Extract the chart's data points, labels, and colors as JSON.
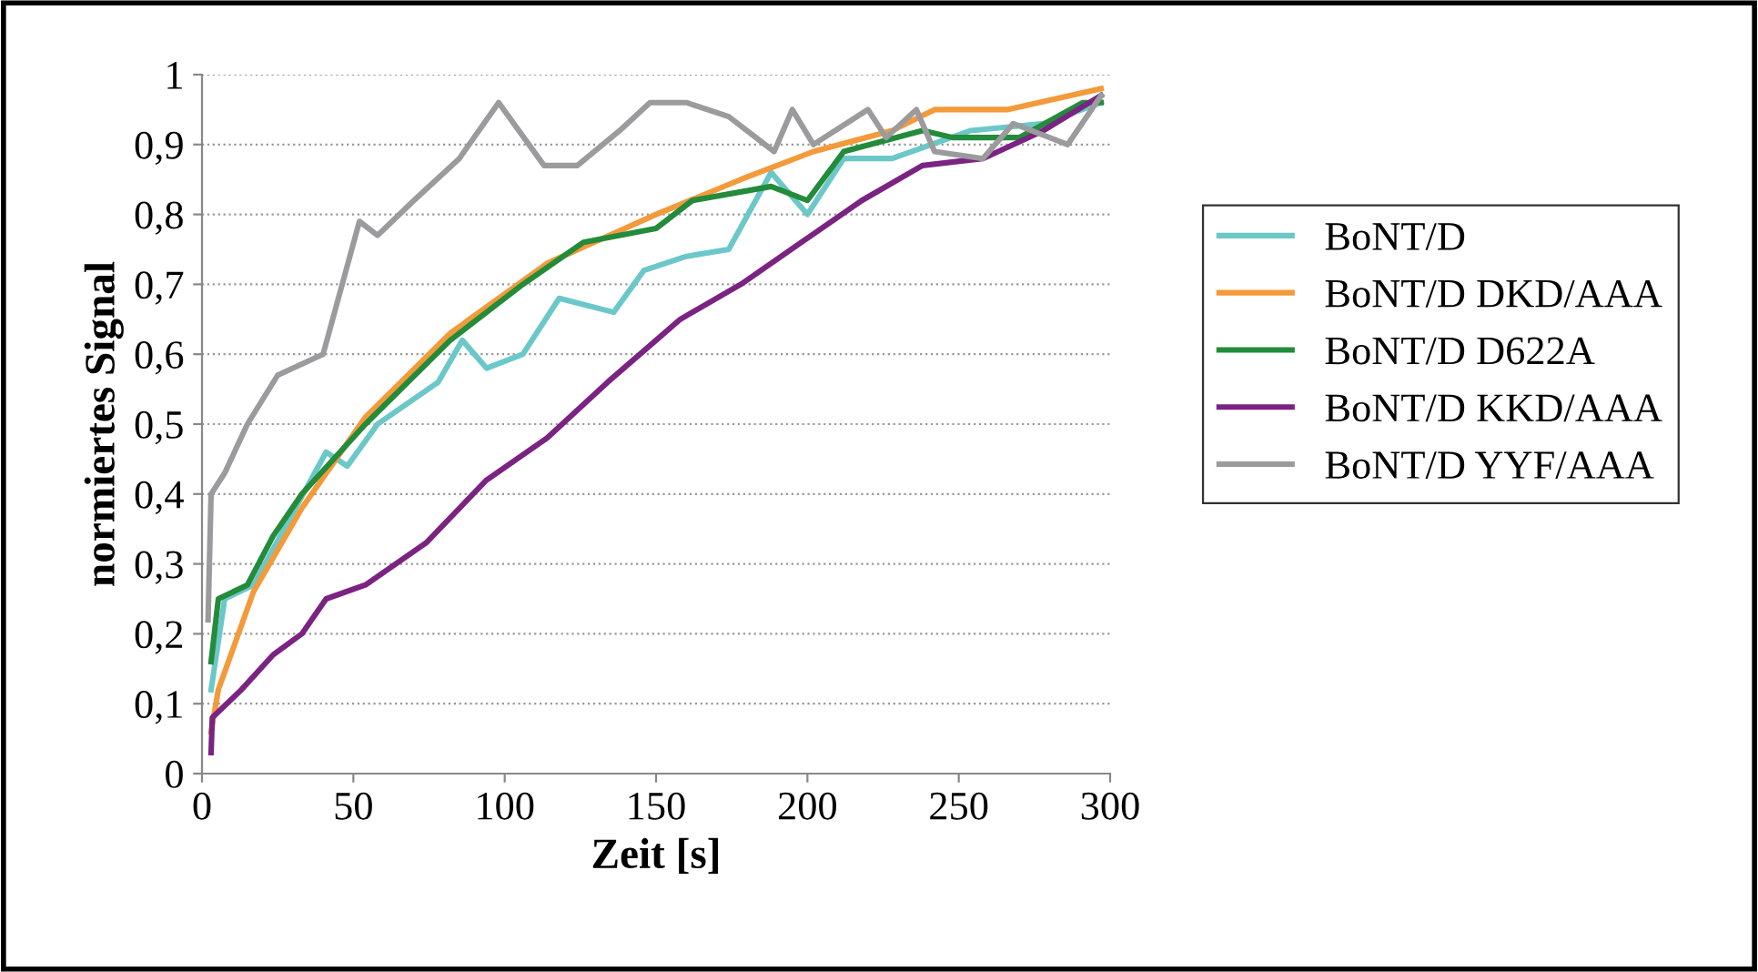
{
  "chart_data": {
    "type": "line",
    "xlabel": "Zeit [s]",
    "ylabel": "normiertes Signal",
    "xlim": [
      0,
      300
    ],
    "xticks": [
      0,
      50,
      100,
      150,
      200,
      250,
      300
    ],
    "ylim": [
      0,
      1
    ],
    "yticks": [
      0,
      {
        "value": 0.1,
        "label": "0,1"
      },
      {
        "value": 0.2,
        "label": "0,2"
      },
      {
        "value": 0.3,
        "label": "0,3"
      },
      {
        "value": 0.4,
        "label": "0,4"
      },
      {
        "value": 0.5,
        "label": "0,5"
      },
      {
        "value": 0.6,
        "label": "0,6"
      },
      {
        "value": 0.7,
        "label": "0,7"
      },
      {
        "value": 0.8,
        "label": "0,8"
      },
      {
        "value": 0.9,
        "label": "0,9"
      },
      1
    ],
    "grid": "y",
    "legend": "right",
    "marker": "none",
    "line_style": "solid",
    "series": [
      {
        "name": "BoNT/D",
        "color": "#6cc8c8",
        "x": [
          3,
          7.5,
          17,
          41,
          48,
          58,
          78,
          86,
          94,
          106,
          118,
          136,
          146,
          160,
          174,
          188,
          200,
          212,
          228,
          254,
          278,
          297
        ],
        "values": [
          0.12,
          0.25,
          0.27,
          0.46,
          0.44,
          0.5,
          0.56,
          0.62,
          0.58,
          0.6,
          0.68,
          0.66,
          0.72,
          0.74,
          0.75,
          0.86,
          0.8,
          0.88,
          0.88,
          0.92,
          0.93,
          0.96
        ]
      },
      {
        "name": "BoNT/D DKD/AAA",
        "color": "#f39a3a",
        "x": [
          3,
          5.4,
          17,
          33,
          54,
          82,
          114,
          150,
          178,
          202,
          228,
          242,
          266,
          297
        ],
        "values": [
          0.06,
          0.12,
          0.26,
          0.38,
          0.51,
          0.63,
          0.73,
          0.8,
          0.85,
          0.89,
          0.92,
          0.95,
          0.95,
          0.98
        ]
      },
      {
        "name": "BoNT/D D622A",
        "color": "#238b3a",
        "x": [
          3,
          5.4,
          15,
          23.5,
          33,
          54,
          82,
          106,
          126,
          150,
          162,
          188,
          200,
          212,
          238,
          248,
          270,
          291,
          297
        ],
        "values": [
          0.16,
          0.25,
          0.27,
          0.34,
          0.4,
          0.5,
          0.62,
          0.7,
          0.76,
          0.78,
          0.82,
          0.84,
          0.82,
          0.89,
          0.92,
          0.91,
          0.91,
          0.96,
          0.96
        ]
      },
      {
        "name": "BoNT/D KKD/AAA",
        "color": "#7b2382",
        "x": [
          3,
          3.4,
          13,
          23.5,
          33,
          41,
          54,
          74,
          94,
          114,
          134,
          150,
          158,
          178,
          198,
          218,
          238,
          258,
          278,
          297
        ],
        "values": [
          0.03,
          0.08,
          0.12,
          0.17,
          0.2,
          0.25,
          0.27,
          0.33,
          0.42,
          0.48,
          0.56,
          0.62,
          0.65,
          0.7,
          0.76,
          0.82,
          0.87,
          0.88,
          0.92,
          0.97
        ]
      },
      {
        "name": "BoNT/D YYF/AAA",
        "color": "#9b9b9e",
        "x": [
          2,
          3,
          7.5,
          15,
          25,
          40,
          52,
          58,
          70,
          85,
          98,
          113,
          124,
          138,
          148,
          160,
          174,
          189,
          195,
          202,
          220,
          226,
          236,
          242,
          258,
          268,
          286,
          297
        ],
        "values": [
          0.22,
          0.4,
          0.43,
          0.5,
          0.57,
          0.6,
          0.79,
          0.77,
          0.82,
          0.88,
          0.96,
          0.87,
          0.87,
          0.92,
          0.96,
          0.96,
          0.94,
          0.89,
          0.95,
          0.9,
          0.95,
          0.91,
          0.95,
          0.89,
          0.88,
          0.93,
          0.9,
          0.97
        ]
      }
    ]
  }
}
